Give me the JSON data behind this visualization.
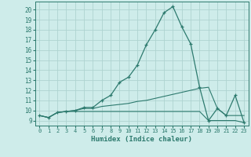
{
  "xlabel": "Humidex (Indice chaleur)",
  "background_color": "#ceecea",
  "grid_color": "#aed4d0",
  "line_color": "#2d7a6e",
  "xlim": [
    -0.5,
    23.5
  ],
  "ylim": [
    8.5,
    20.8
  ],
  "yticks": [
    9,
    10,
    11,
    12,
    13,
    14,
    15,
    16,
    17,
    18,
    19,
    20
  ],
  "xticks": [
    0,
    1,
    2,
    3,
    4,
    5,
    6,
    7,
    8,
    9,
    10,
    11,
    12,
    13,
    14,
    15,
    16,
    17,
    18,
    19,
    20,
    21,
    22,
    23
  ],
  "series": {
    "main": {
      "x": [
        0,
        1,
        2,
        3,
        4,
        5,
        6,
        7,
        8,
        9,
        10,
        11,
        12,
        13,
        14,
        15,
        16,
        17,
        18,
        19,
        20,
        21,
        22,
        23
      ],
      "y": [
        9.5,
        9.3,
        9.8,
        9.9,
        10.0,
        10.3,
        10.3,
        11.0,
        11.5,
        12.8,
        13.3,
        14.5,
        16.5,
        18.0,
        19.7,
        20.3,
        18.3,
        16.6,
        12.3,
        9.0,
        10.2,
        9.5,
        11.5,
        8.8
      ]
    },
    "flat1": {
      "x": [
        0,
        1,
        2,
        3,
        4,
        5,
        6,
        7,
        8,
        9,
        10,
        11,
        12,
        13,
        14,
        15,
        16,
        17,
        18,
        19,
        20,
        21,
        22,
        23
      ],
      "y": [
        9.5,
        9.3,
        9.8,
        9.9,
        10.0,
        10.2,
        10.2,
        10.4,
        10.5,
        10.6,
        10.7,
        10.9,
        11.0,
        11.2,
        11.4,
        11.6,
        11.8,
        12.0,
        12.2,
        12.3,
        10.2,
        9.5,
        9.5,
        9.5
      ]
    },
    "flat2": {
      "x": [
        0,
        1,
        2,
        3,
        4,
        5,
        6,
        7,
        8,
        9,
        10,
        11,
        12,
        13,
        14,
        15,
        16,
        17,
        18,
        19,
        20,
        21,
        22,
        23
      ],
      "y": [
        9.5,
        9.3,
        9.8,
        9.9,
        9.9,
        9.9,
        9.9,
        9.9,
        9.9,
        9.9,
        9.9,
        9.9,
        9.9,
        9.9,
        9.9,
        9.9,
        9.9,
        9.9,
        9.9,
        9.0,
        9.0,
        9.0,
        9.0,
        8.8
      ]
    }
  }
}
